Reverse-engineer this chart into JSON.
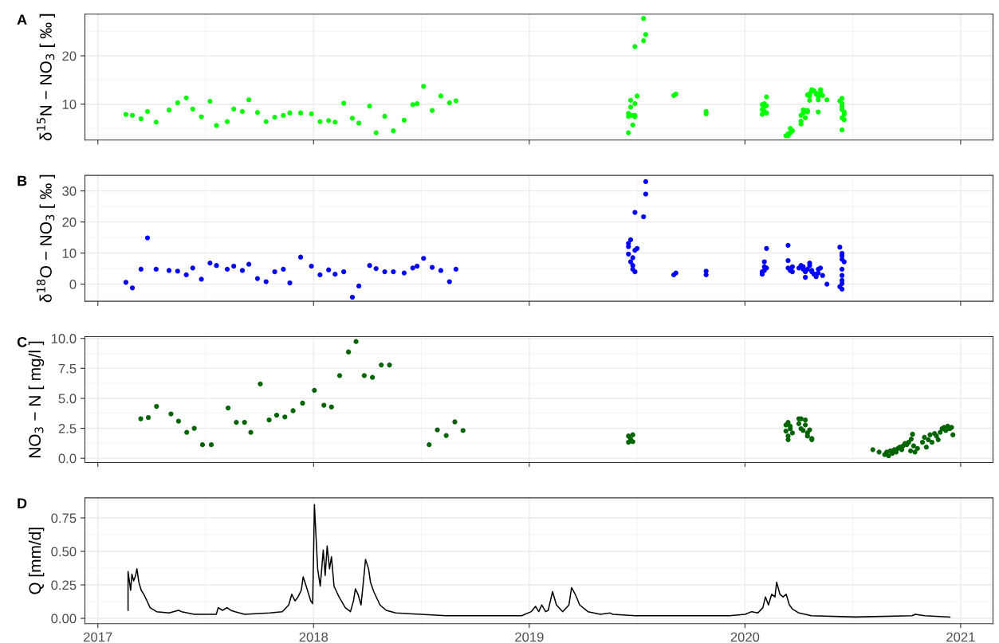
{
  "chart_data": [
    {
      "type": "scatter",
      "title": "A",
      "ylabel": "δ$^{15}$N − NO$_{3}$ [ ‰ ]",
      "color": "#00ff00",
      "marker": "circle",
      "grid": true,
      "tick_labels": "y",
      "xlim": [
        2016.94,
        2021.15
      ],
      "xticks": [
        2017,
        2018,
        2019,
        2020,
        2021
      ],
      "ylim": [
        2.6,
        28.6
      ],
      "yticks": [
        10,
        20
      ],
      "x": [
        2017.13,
        2017.16,
        2017.2,
        2017.23,
        2017.27,
        2017.33,
        2017.37,
        2017.41,
        2017.44,
        2017.48,
        2017.52,
        2017.55,
        2017.6,
        2017.63,
        2017.67,
        2017.7,
        2017.74,
        2017.78,
        2017.82,
        2017.86,
        2017.89,
        2017.94,
        2017.99,
        2018.03,
        2018.07,
        2018.1,
        2018.14,
        2018.18,
        2018.21,
        2018.26,
        2018.29,
        2018.33,
        2018.37,
        2018.42,
        2018.46,
        2018.48,
        2018.51,
        2018.55,
        2018.59,
        2018.63,
        2018.66,
        2019.46,
        2019.46,
        2019.46,
        2019.47,
        2019.47,
        2019.47,
        2019.48,
        2019.48,
        2019.49,
        2019.49,
        2019.49,
        2019.49,
        2019.5,
        2019.53,
        2019.53,
        2019.54,
        2019.67,
        2019.68,
        2019.82,
        2019.82,
        2020.08,
        2020.08,
        2020.08,
        2020.09,
        2020.09,
        2020.09,
        2020.1,
        2020.1,
        2020.1,
        2020.19,
        2020.2,
        2020.2,
        2020.21,
        2020.21,
        2020.22,
        2020.26,
        2020.26,
        2020.26,
        2020.27,
        2020.27,
        2020.28,
        2020.28,
        2020.29,
        2020.29,
        2020.29,
        2020.3,
        2020.3,
        2020.3,
        2020.31,
        2020.31,
        2020.32,
        2020.33,
        2020.33,
        2020.34,
        2020.34,
        2020.34,
        2020.35,
        2020.35,
        2020.36,
        2020.38,
        2020.44,
        2020.45,
        2020.45,
        2020.45,
        2020.45,
        2020.46,
        2020.46,
        2020.45,
        2020.46,
        2020.45
      ],
      "values": [
        7.9,
        7.7,
        7.0,
        8.5,
        6.3,
        8.8,
        10.3,
        11.3,
        9.0,
        7.4,
        10.6,
        5.6,
        6.4,
        9.0,
        8.5,
        10.9,
        8.3,
        6.4,
        7.3,
        7.7,
        8.2,
        8.2,
        8.0,
        6.4,
        6.6,
        6.3,
        10.2,
        7.1,
        6.1,
        9.6,
        4.1,
        7.5,
        4.5,
        6.7,
        9.9,
        10.1,
        13.7,
        8.7,
        11.7,
        10.3,
        10.7,
        4.1,
        7.5,
        8.1,
        10.8,
        9.4,
        7.7,
        7.7,
        5.7,
        7.4,
        7.7,
        10.1,
        21.9,
        11.7,
        23.1,
        27.7,
        24.4,
        11.8,
        12.1,
        8.0,
        8.5,
        7.9,
        8.9,
        9.9,
        9.5,
        10.1,
        8.5,
        8.2,
        9.7,
        11.5,
        3.5,
        3.9,
        3.5,
        4.1,
        5.0,
        4.5,
        5.9,
        6.5,
        7.7,
        8.2,
        8.8,
        8.7,
        7.2,
        8.4,
        8.7,
        11.9,
        12.2,
        11.7,
        10.8,
        12.7,
        13.0,
        12.8,
        12.3,
        12.1,
        11.6,
        8.4,
        10.9,
        12.4,
        13.0,
        11.8,
        10.9,
        10.7,
        11.2,
        10.1,
        9.5,
        8.9,
        8.4,
        7.9,
        7.2,
        6.8,
        4.7
      ]
    },
    {
      "type": "scatter",
      "title": "B",
      "ylabel": "δ$^{18}$O − NO$_{3}$ [ ‰ ]",
      "color": "#0000ff",
      "marker": "circle",
      "grid": true,
      "tick_labels": "y",
      "xlim": [
        2016.94,
        2021.15
      ],
      "xticks": [
        2017,
        2018,
        2019,
        2020,
        2021
      ],
      "ylim": [
        -5.5,
        35
      ],
      "yticks": [
        0,
        10,
        20,
        30
      ],
      "x": [
        2017.13,
        2017.16,
        2017.2,
        2017.23,
        2017.27,
        2017.33,
        2017.37,
        2017.41,
        2017.44,
        2017.48,
        2017.52,
        2017.55,
        2017.6,
        2017.63,
        2017.67,
        2017.7,
        2017.74,
        2017.78,
        2017.82,
        2017.86,
        2017.89,
        2017.94,
        2017.99,
        2018.03,
        2018.07,
        2018.1,
        2018.14,
        2018.18,
        2018.21,
        2018.26,
        2018.29,
        2018.33,
        2018.37,
        2018.42,
        2018.46,
        2018.48,
        2018.51,
        2018.55,
        2018.59,
        2018.63,
        2018.66,
        2019.46,
        2019.46,
        2019.47,
        2019.46,
        2019.47,
        2019.48,
        2019.48,
        2019.49,
        2019.48,
        2019.49,
        2019.5,
        2019.49,
        2019.53,
        2019.54,
        2019.54,
        2019.67,
        2019.68,
        2019.82,
        2019.82,
        2020.08,
        2020.09,
        2020.09,
        2020.09,
        2020.1,
        2020.1,
        2020.08,
        2020.2,
        2020.2,
        2020.2,
        2020.21,
        2020.21,
        2020.22,
        2020.22,
        2020.25,
        2020.26,
        2020.27,
        2020.27,
        2020.28,
        2020.28,
        2020.29,
        2020.3,
        2020.3,
        2020.31,
        2020.31,
        2020.32,
        2020.33,
        2020.33,
        2020.34,
        2020.34,
        2020.35,
        2020.36,
        2020.38,
        2020.44,
        2020.45,
        2020.45,
        2020.45,
        2020.45,
        2020.45,
        2020.45,
        2020.44,
        2020.45,
        2020.45,
        2020.46
      ],
      "values": [
        0.6,
        -1.2,
        4.8,
        14.9,
        4.8,
        4.4,
        4.2,
        3.0,
        5.2,
        1.6,
        6.8,
        6.0,
        4.8,
        5.8,
        4.4,
        6.4,
        1.8,
        0.8,
        4.0,
        4.8,
        0.4,
        8.7,
        5.8,
        3.0,
        4.6,
        3.2,
        4.0,
        -4.2,
        -0.6,
        6.0,
        5.0,
        4.0,
        4.0,
        3.6,
        5.2,
        5.8,
        8.3,
        5.4,
        4.4,
        0.8,
        4.8,
        12.1,
        13.1,
        14.3,
        9.7,
        7.2,
        6.0,
        4.8,
        4.0,
        8.5,
        10.9,
        11.5,
        23.1,
        21.7,
        33.0,
        29.0,
        3.0,
        3.6,
        3.0,
        4.2,
        3.2,
        4.4,
        5.6,
        7.2,
        5.2,
        11.5,
        4.0,
        12.5,
        7.6,
        5.2,
        4.8,
        4.4,
        5.6,
        4.0,
        5.2,
        6.0,
        5.6,
        4.8,
        4.0,
        2.2,
        4.8,
        6.8,
        6.0,
        4.4,
        4.0,
        3.2,
        2.4,
        3.2,
        3.6,
        4.8,
        5.2,
        2.8,
        0.0,
        11.9,
        9.1,
        8.0,
        4.8,
        2.8,
        1.2,
        0.2,
        -0.8,
        -1.6,
        9.9,
        7.2
      ]
    },
    {
      "type": "scatter",
      "title": "C",
      "ylabel": "NO$_{3}$ − N [ mg/l ]",
      "color": "#006400",
      "marker": "circle",
      "grid": true,
      "tick_labels": "y",
      "xlim": [
        2016.94,
        2021.15
      ],
      "xticks": [
        2017,
        2018,
        2019,
        2020,
        2021
      ],
      "ylim": [
        -0.35,
        10.15
      ],
      "yticks": [
        {
          "value": 0,
          "label": "0.0"
        },
        2.5,
        {
          "value": 5,
          "label": "5.0"
        },
        7.5,
        {
          "value": 10,
          "label": "10.0"
        }
      ],
      "x": [
        2017.199,
        2017.234,
        2017.272,
        2017.339,
        2017.374,
        2017.412,
        2017.447,
        2017.485,
        2017.526,
        2017.604,
        2017.642,
        2017.68,
        2017.709,
        2017.753,
        2017.794,
        2017.829,
        2017.867,
        2017.905,
        2017.949,
        2018.004,
        2018.048,
        2018.083,
        2018.121,
        2018.162,
        2018.197,
        2018.235,
        2018.273,
        2018.314,
        2018.352,
        2018.536,
        2018.574,
        2018.615,
        2018.655,
        2018.693,
        2019.46,
        2019.46,
        2019.47,
        2019.48,
        2019.48,
        2020.19,
        2020.19,
        2020.2,
        2020.2,
        2020.2,
        2020.21,
        2020.21,
        2020.22,
        2020.25,
        2020.25,
        2020.26,
        2020.26,
        2020.27,
        2020.28,
        2020.28,
        2020.29,
        2020.29,
        2020.3,
        2020.31,
        2020.31,
        2020.593,
        2020.622,
        2020.648,
        2020.657,
        2020.666,
        2020.674,
        2020.683,
        2020.692,
        2020.701,
        2020.709,
        2020.718,
        2020.727,
        2020.733,
        2020.742,
        2020.75,
        2020.759,
        2020.768,
        2020.771,
        2020.777,
        2020.782,
        2020.788,
        2020.8,
        2020.823,
        2020.832,
        2020.841,
        2020.85,
        2020.858,
        2020.867,
        2020.879,
        2020.888,
        2020.896,
        2020.905,
        2020.914,
        2020.923,
        2020.931,
        2020.94,
        2020.949,
        2020.958,
        2020.964
      ],
      "values": [
        3.3,
        3.4,
        4.33,
        3.7,
        3.1,
        2.16,
        2.5,
        1.13,
        1.13,
        4.2,
        3.0,
        3.0,
        2.16,
        6.2,
        3.2,
        3.6,
        3.45,
        3.97,
        4.6,
        5.67,
        4.43,
        4.28,
        6.9,
        8.87,
        9.74,
        6.9,
        6.75,
        7.78,
        7.78,
        1.13,
        2.37,
        1.9,
        3.04,
        2.32,
        1.34,
        1.86,
        1.6,
        1.96,
        1.39,
        2.78,
        2.27,
        1.86,
        1.55,
        2.99,
        2.47,
        2.68,
        2.11,
        3.3,
        2.89,
        2.47,
        3.3,
        2.32,
        3.2,
        2.78,
        2.11,
        1.86,
        2.37,
        1.65,
        1.55,
        0.72,
        0.52,
        0.31,
        0.52,
        0.21,
        0.62,
        0.41,
        0.72,
        0.52,
        0.82,
        0.93,
        0.72,
        1.03,
        1.24,
        1.13,
        1.34,
        0.62,
        1.6,
        2.01,
        1.03,
        0.52,
        0.82,
        1.34,
        1.75,
        0.93,
        1.55,
        1.96,
        1.34,
        2.06,
        1.86,
        1.55,
        2.16,
        2.47,
        2.58,
        2.32,
        2.68,
        2.47,
        2.58,
        1.96
      ]
    },
    {
      "type": "line",
      "title": "D",
      "ylabel": "Q [mm/d]",
      "color": "#000000",
      "line_style": "solid",
      "grid": true,
      "xlim": [
        2016.94,
        2021.15
      ],
      "xticks": [
        2017,
        2018,
        2019,
        2020,
        2021
      ],
      "ylim": [
        -0.04,
        0.9
      ],
      "yticks": [
        {
          "value": 0,
          "label": "0.00"
        },
        0.25,
        {
          "value": 0.5,
          "label": "0.50"
        },
        0.75
      ],
      "x": [
        2017.14,
        2017.14,
        2017.152,
        2017.158,
        2017.166,
        2017.175,
        2017.181,
        2017.19,
        2017.201,
        2017.213,
        2017.228,
        2017.242,
        2017.272,
        2017.33,
        2017.374,
        2017.388,
        2017.447,
        2017.549,
        2017.558,
        2017.578,
        2017.599,
        2017.616,
        2017.636,
        2017.68,
        2017.797,
        2017.855,
        2017.885,
        2017.899,
        2017.914,
        2017.928,
        2017.943,
        2017.952,
        2017.966,
        2017.987,
        2017.996,
        2018.004,
        2018.019,
        2018.031,
        2018.045,
        2018.054,
        2018.063,
        2018.074,
        2018.083,
        2018.095,
        2018.118,
        2018.147,
        2018.171,
        2018.185,
        2018.194,
        2018.206,
        2018.22,
        2018.229,
        2018.241,
        2018.255,
        2018.264,
        2018.279,
        2018.308,
        2018.337,
        2018.381,
        2018.498,
        2018.615,
        2018.907,
        2018.965,
        2019.009,
        2019.029,
        2019.044,
        2019.058,
        2019.076,
        2019.088,
        2019.108,
        2019.126,
        2019.155,
        2019.184,
        2019.196,
        2019.213,
        2019.234,
        2019.272,
        2019.33,
        2019.374,
        2019.388,
        2019.491,
        2019.783,
        2019.928,
        2020.001,
        2020.031,
        2020.06,
        2020.083,
        2020.095,
        2020.109,
        2020.124,
        2020.139,
        2020.147,
        2020.162,
        2020.177,
        2020.191,
        2020.206,
        2020.22,
        2020.25,
        2020.308,
        2020.512,
        2020.775,
        2020.79,
        2020.834,
        2020.95
      ],
      "values": [
        0.06,
        0.35,
        0.21,
        0.33,
        0.28,
        0.32,
        0.37,
        0.27,
        0.21,
        0.18,
        0.13,
        0.08,
        0.05,
        0.04,
        0.06,
        0.05,
        0.03,
        0.03,
        0.08,
        0.06,
        0.08,
        0.06,
        0.05,
        0.03,
        0.04,
        0.05,
        0.1,
        0.18,
        0.13,
        0.16,
        0.21,
        0.31,
        0.24,
        0.13,
        0.11,
        0.85,
        0.37,
        0.24,
        0.51,
        0.32,
        0.54,
        0.37,
        0.46,
        0.24,
        0.16,
        0.08,
        0.05,
        0.13,
        0.22,
        0.18,
        0.1,
        0.24,
        0.44,
        0.37,
        0.27,
        0.2,
        0.1,
        0.06,
        0.04,
        0.03,
        0.02,
        0.02,
        0.02,
        0.05,
        0.09,
        0.05,
        0.1,
        0.05,
        0.06,
        0.2,
        0.1,
        0.05,
        0.1,
        0.23,
        0.18,
        0.1,
        0.05,
        0.03,
        0.04,
        0.03,
        0.02,
        0.02,
        0.02,
        0.03,
        0.05,
        0.04,
        0.08,
        0.16,
        0.1,
        0.18,
        0.16,
        0.27,
        0.18,
        0.16,
        0.18,
        0.1,
        0.07,
        0.04,
        0.02,
        0.01,
        0.02,
        0.03,
        0.02,
        0.01
      ]
    }
  ]
}
